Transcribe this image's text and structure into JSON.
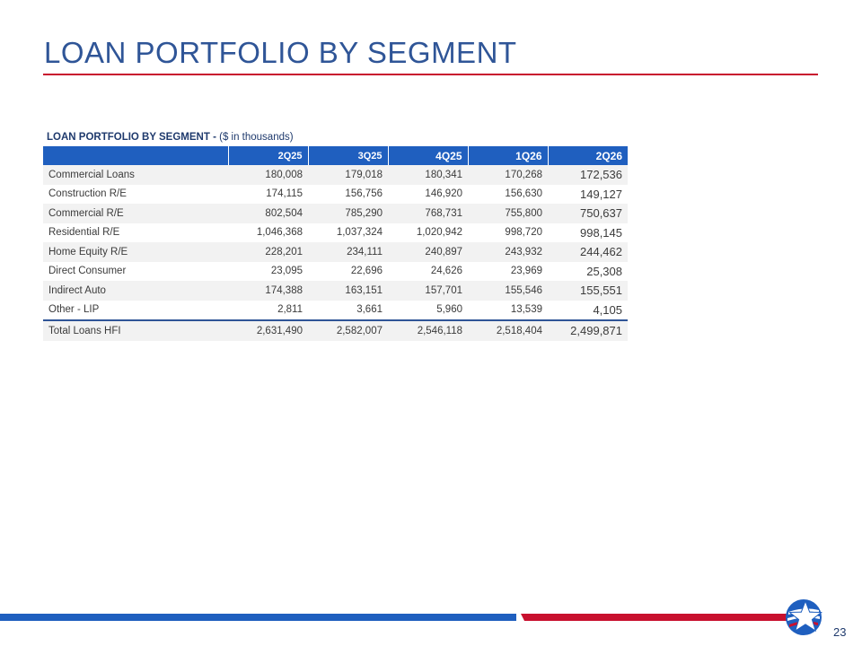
{
  "slide": {
    "title": "LOAN PORTFOLIO BY SEGMENT",
    "page_number": "23",
    "colors": {
      "title": "#2f5597",
      "accent_red": "#c8102e",
      "accent_blue": "#1f5fbf"
    }
  },
  "table": {
    "caption_bold": "LOAN PORTFOLIO BY SEGMENT - ",
    "caption_rest": "($ in thousands)",
    "columns": [
      "",
      "2Q25",
      "3Q25",
      "4Q25",
      "1Q26",
      "2Q26"
    ],
    "rows": [
      {
        "segment": "Commercial Loans",
        "values": [
          "180,008",
          "179,018",
          "180,341",
          "170,268",
          "172,536"
        ]
      },
      {
        "segment": "Construction R/E",
        "values": [
          "174,115",
          "156,756",
          "146,920",
          "156,630",
          "149,127"
        ]
      },
      {
        "segment": "Commercial R/E",
        "values": [
          "802,504",
          "785,290",
          "768,731",
          "755,800",
          "750,637"
        ]
      },
      {
        "segment": "Residential R/E",
        "values": [
          "1,046,368",
          "1,037,324",
          "1,020,942",
          "998,720",
          "998,145"
        ]
      },
      {
        "segment": "Home Equity R/E",
        "values": [
          "228,201",
          "234,111",
          "240,897",
          "243,932",
          "244,462"
        ]
      },
      {
        "segment": "Direct Consumer",
        "values": [
          "23,095",
          "22,696",
          "24,626",
          "23,969",
          "25,308"
        ]
      },
      {
        "segment": "Indirect Auto",
        "values": [
          "174,388",
          "163,151",
          "157,701",
          "155,546",
          "155,551"
        ]
      },
      {
        "segment": "Other - LIP",
        "values": [
          "2,811",
          "3,661",
          "5,960",
          "13,539",
          "4,105"
        ]
      }
    ],
    "total": {
      "segment": "Total Loans HFI",
      "values": [
        "2,631,490",
        "2,582,007",
        "2,546,118",
        "2,518,404",
        "2,499,871"
      ]
    }
  },
  "logo": {
    "icon": "star-logo-icon"
  }
}
